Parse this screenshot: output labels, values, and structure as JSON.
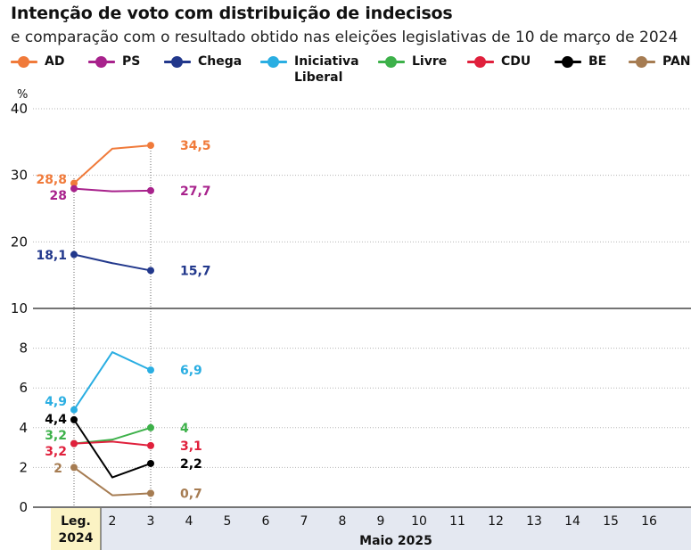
{
  "chart_data": {
    "type": "line",
    "title": "Intenção de voto com distribuição de indecisos",
    "subtitle": "e comparação com o resultado obtido nas eleições legislativas de 10 de março de 2024",
    "ylabel": "%",
    "upper_panel": {
      "ylim": [
        10,
        40
      ],
      "ticks": [
        "40",
        "30",
        "20",
        "10"
      ]
    },
    "lower_panel": {
      "ylim": [
        0,
        10
      ],
      "ticks": [
        "8",
        "6",
        "4",
        "2",
        "0"
      ]
    },
    "x_positions": [
      "Leg. 2024",
      "2",
      "3",
      "4",
      "5",
      "6",
      "7",
      "8",
      "9",
      "10",
      "11",
      "12",
      "13",
      "14",
      "15",
      "16"
    ],
    "x_ticks": [
      "2",
      "3",
      "4",
      "5",
      "6",
      "7",
      "8",
      "9",
      "10",
      "11",
      "12",
      "13",
      "14",
      "15",
      "16"
    ],
    "leg_label_line1": "Leg.",
    "leg_label_line2": "2024",
    "month_label": "Maio 2025",
    "series": [
      {
        "name": "AD",
        "color": "#f07a3a",
        "panel": "upper",
        "values": [
          28.8,
          34,
          34.5
        ],
        "start_label": "28,8",
        "end_label": "34,5"
      },
      {
        "name": "PS",
        "color": "#a8228c",
        "panel": "upper",
        "values": [
          28,
          27.6,
          27.7
        ],
        "start_label": "28",
        "end_label": "27,7"
      },
      {
        "name": "Chega",
        "color": "#22388c",
        "panel": "upper",
        "values": [
          18.1,
          16.8,
          15.7
        ],
        "start_label": "18,1",
        "end_label": "15,7"
      },
      {
        "name": "Iniciativa Liberal",
        "legend_label": "Iniciativa\nLiberal",
        "color": "#2aaee2",
        "panel": "lower",
        "values": [
          4.9,
          7.8,
          6.9
        ],
        "start_label": "4,9",
        "end_label": "6,9"
      },
      {
        "name": "Livre",
        "color": "#3db14a",
        "panel": "lower",
        "values": [
          3.2,
          3.4,
          4
        ],
        "start_label": "3,2",
        "end_label": "4"
      },
      {
        "name": "CDU",
        "color": "#e0203c",
        "panel": "lower",
        "values": [
          3.2,
          3.3,
          3.1
        ],
        "start_label": "3,2",
        "end_label": "3,1"
      },
      {
        "name": "BE",
        "color": "#000000",
        "panel": "lower",
        "values": [
          4.4,
          1.5,
          2.2
        ],
        "start_label": "4,4",
        "end_label": "2,2"
      },
      {
        "name": "PAN",
        "color": "#a67c52",
        "panel": "lower",
        "values": [
          2,
          0.6,
          0.7
        ],
        "start_label": "2",
        "end_label": "0,7"
      }
    ]
  }
}
